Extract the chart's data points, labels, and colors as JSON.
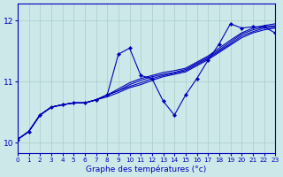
{
  "xlabel": "Graphe des températures (°c)",
  "xlim": [
    0,
    23
  ],
  "ylim": [
    9.82,
    12.28
  ],
  "yticks": [
    10,
    11,
    12
  ],
  "xticks": [
    0,
    1,
    2,
    3,
    4,
    5,
    6,
    7,
    8,
    9,
    10,
    11,
    12,
    13,
    14,
    15,
    16,
    17,
    18,
    19,
    20,
    21,
    22,
    23
  ],
  "background_color": "#cce8e8",
  "grid_color": "#aacccc",
  "line_color": "#0000bb",
  "series_smooth1": [
    10.05,
    10.18,
    10.45,
    10.58,
    10.62,
    10.65,
    10.65,
    10.7,
    10.78,
    10.88,
    10.98,
    11.05,
    11.1,
    11.15,
    11.18,
    11.22,
    11.32,
    11.42,
    11.55,
    11.68,
    11.8,
    11.88,
    11.92,
    11.95
  ],
  "series_smooth2": [
    10.05,
    10.18,
    10.45,
    10.58,
    10.62,
    10.65,
    10.65,
    10.7,
    10.78,
    10.85,
    10.95,
    11.02,
    11.08,
    11.12,
    11.15,
    11.2,
    11.3,
    11.4,
    11.52,
    11.65,
    11.78,
    11.85,
    11.9,
    11.92
  ],
  "series_smooth3": [
    10.05,
    10.18,
    10.45,
    10.58,
    10.62,
    10.65,
    10.65,
    10.7,
    10.78,
    10.85,
    10.92,
    10.98,
    11.05,
    11.1,
    11.14,
    11.18,
    11.28,
    11.38,
    11.5,
    11.62,
    11.75,
    11.82,
    11.88,
    11.9
  ],
  "series_smooth4": [
    10.05,
    10.18,
    10.45,
    10.58,
    10.62,
    10.65,
    10.65,
    10.7,
    10.75,
    10.82,
    10.9,
    10.95,
    11.02,
    11.08,
    11.12,
    11.16,
    11.26,
    11.36,
    11.48,
    11.6,
    11.72,
    11.8,
    11.85,
    11.88
  ],
  "series_jagged": [
    10.05,
    10.18,
    10.45,
    10.58,
    10.62,
    10.65,
    10.65,
    10.7,
    10.78,
    11.45,
    11.55,
    11.1,
    11.05,
    10.68,
    10.45,
    10.78,
    11.05,
    11.35,
    11.62,
    11.95,
    11.88,
    11.9,
    11.9,
    11.8
  ]
}
